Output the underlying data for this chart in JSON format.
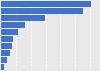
{
  "values": [
    30.3,
    27.5,
    14.7,
    8.1,
    5.8,
    4.2,
    3.6,
    2.9,
    2.0,
    0.9
  ],
  "bar_color": "#4472c4",
  "background_color": "#e9e9e9",
  "grid_color": "#ffffff",
  "xlim": [
    0,
    33
  ]
}
